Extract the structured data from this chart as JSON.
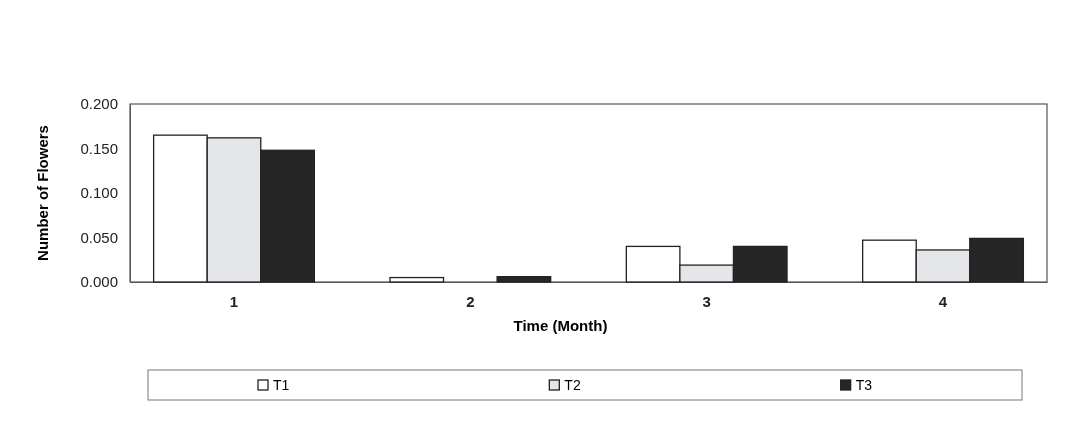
{
  "chart_data": {
    "type": "bar",
    "xlabel": "Time (Month)",
    "ylabel": "Number of Flowers",
    "categories": [
      "1",
      "2",
      "3",
      "4"
    ],
    "series": [
      {
        "name": "T1",
        "color": "#ffffff",
        "values": [
          0.165,
          0.005,
          0.04,
          0.047
        ]
      },
      {
        "name": "T2",
        "color": "#e4e6ea",
        "values": [
          0.162,
          0,
          0.019,
          0.036
        ]
      },
      {
        "name": "T3",
        "color": "#262626",
        "values": [
          0.148,
          0.006,
          0.04,
          0.049
        ]
      }
    ],
    "ylim": [
      0,
      0.2
    ],
    "yticks": [
      {
        "value": 0,
        "label": "0.000"
      },
      {
        "value": 0.05,
        "label": "0.050"
      },
      {
        "value": 0.1,
        "label": "0.100"
      },
      {
        "value": 0.15,
        "label": "0.150"
      },
      {
        "value": 0.2,
        "label": "0.200"
      }
    ],
    "grid": false,
    "legend": "bottom"
  }
}
